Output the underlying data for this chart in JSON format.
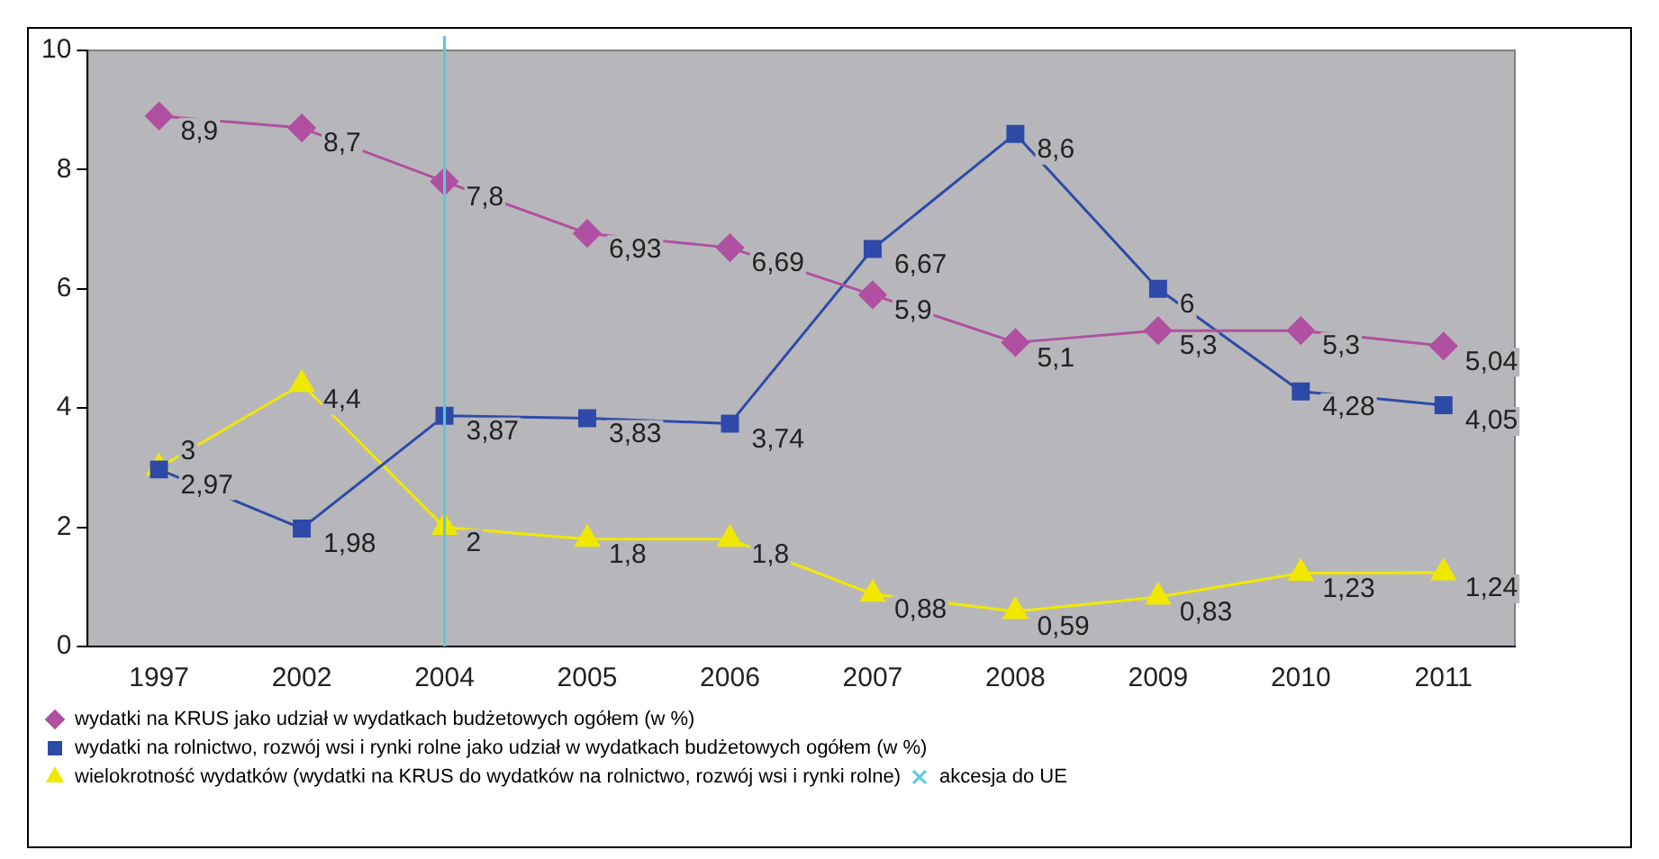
{
  "chart_data": {
    "type": "line",
    "categories": [
      "1997",
      "2002",
      "2004",
      "2005",
      "2006",
      "2007",
      "2008",
      "2009",
      "2010",
      "2011"
    ],
    "series": [
      {
        "name": "wydatki na KRUS jako udział w wydatkach budżetowych ogółem (w %)",
        "color": "#b050a0",
        "marker": "diamond",
        "values": [
          8.9,
          8.7,
          7.8,
          6.93,
          6.69,
          5.9,
          5.1,
          5.3,
          5.3,
          5.04
        ],
        "value_labels": [
          "8,9",
          "8,7",
          "7,8",
          "6,93",
          "6,69",
          "5,9",
          "5,1",
          "5,3",
          "5,3",
          "5,04"
        ]
      },
      {
        "name": "wydatki na rolnictwo, rozwój wsi i rynki rolne jako udział w wydatkach budżetowych ogółem (w %)",
        "color": "#2e4aa8",
        "marker": "square",
        "values": [
          2.97,
          1.98,
          3.87,
          3.83,
          3.74,
          6.67,
          8.6,
          6,
          4.28,
          4.05
        ],
        "value_labels": [
          "2,97",
          "1,98",
          "3,87",
          "3,83",
          "3,74",
          "6,67",
          "8,6",
          "6",
          "4,28",
          "4,05"
        ]
      },
      {
        "name": "wielokrotność wydatków (wydatki na KRUS do wydatków na rolnictwo, rozwój wsi i rynki rolne)",
        "color": "#f0e800",
        "marker": "triangle",
        "values": [
          3,
          4.4,
          2,
          1.8,
          1.8,
          0.88,
          0.59,
          0.83,
          1.23,
          1.24
        ],
        "value_labels": [
          "3",
          "4,4",
          "2",
          "1,8",
          "1,8",
          "0,88",
          "0,59",
          "0,83",
          "1,23",
          "1,24"
        ]
      }
    ],
    "ref_lines": [
      {
        "axis": "x",
        "value": "2004",
        "label": "akcesja do UE",
        "color": "#5bc8dc"
      }
    ],
    "ylim": [
      0,
      10
    ],
    "yticks": [
      0,
      2,
      4,
      6,
      8,
      10
    ],
    "grid": false,
    "legend": "bottom"
  }
}
